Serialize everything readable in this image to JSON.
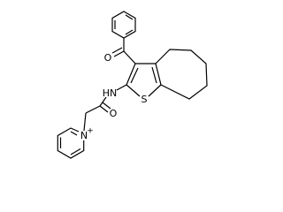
{
  "molecule": {
    "atoms": {
      "carbonyl_oxygen": "O",
      "amine": "HN",
      "sulfur": "S",
      "amide_oxygen": "O",
      "pyridinium_nitrogen": "N",
      "charge": "+"
    }
  }
}
